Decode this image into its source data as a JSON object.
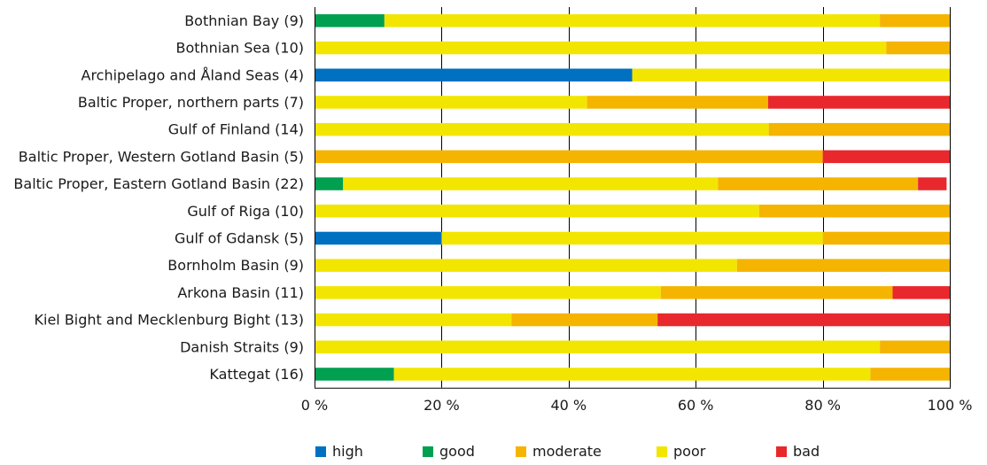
{
  "chart_data": {
    "type": "bar",
    "orientation": "horizontal",
    "stacked": true,
    "categories": [
      "Bothnian Bay (9)",
      "Bothnian Sea (10)",
      "Archipelago and Åland Seas (4)",
      "Baltic Proper, northern parts (7)",
      "Gulf of Finland (14)",
      "Baltic Proper, Western Gotland Basin (5)",
      "Baltic Proper, Eastern Gotland Basin (22)",
      "Gulf of Riga (10)",
      "Gulf of Gdansk (5)",
      "Bornholm Basin (9)",
      "Arkona Basin (11)",
      "Kiel Bight and Mecklenburg Bight (13)",
      "Danish Straits (9)",
      "Kattegat (16)"
    ],
    "series": [
      {
        "name": "high",
        "color": "#0070c0",
        "values": [
          0,
          0,
          50,
          0,
          0,
          0,
          0,
          0,
          20,
          0,
          0,
          0,
          0,
          0
        ]
      },
      {
        "name": "good",
        "color": "#00a050",
        "values": [
          11,
          0,
          0,
          0,
          0,
          0,
          4.5,
          0,
          0,
          0,
          0,
          0,
          0,
          12.5
        ]
      },
      {
        "name": "moderate",
        "color": "#f5b400",
        "values": [
          11,
          10,
          0,
          28.5,
          28.5,
          80,
          31.5,
          30,
          20,
          33.5,
          36.5,
          23,
          11,
          12.5
        ]
      },
      {
        "name": "poor",
        "color": "#f2e600",
        "values": [
          78,
          90,
          50,
          42.9,
          71.5,
          0,
          59,
          70,
          60,
          66.5,
          54.5,
          31,
          89,
          75
        ]
      },
      {
        "name": "bad",
        "color": "#e8282d",
        "values": [
          0,
          0,
          0,
          28.6,
          0,
          20,
          4.5,
          0,
          0,
          0,
          9,
          46,
          0,
          0
        ]
      }
    ],
    "stack_order": [
      "high",
      "good",
      "poor",
      "moderate",
      "bad"
    ],
    "x_ticks": [
      "0 %",
      "20 %",
      "40 %",
      "60 %",
      "80 %",
      "100 %"
    ],
    "xlim": [
      0,
      100
    ],
    "grid": "vertical",
    "legend_position": "bottom",
    "legend": [
      "high",
      "good",
      "moderate",
      "poor",
      "bad"
    ]
  }
}
